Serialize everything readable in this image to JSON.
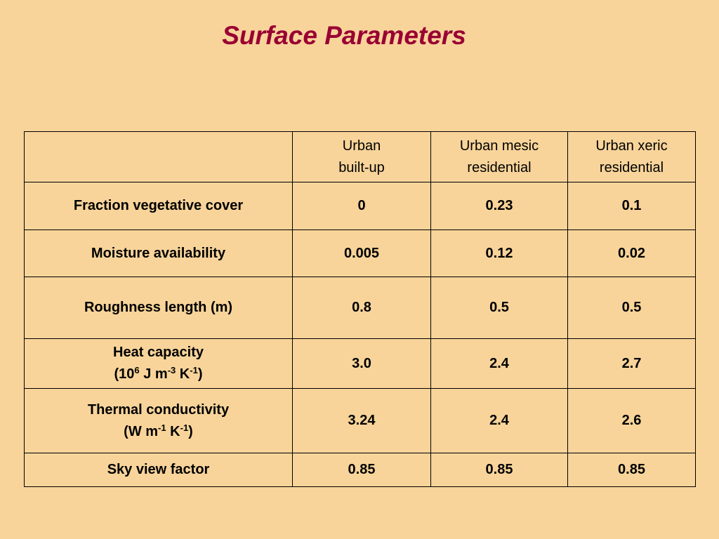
{
  "title": "Surface Parameters",
  "table": {
    "header": [
      [
        "Urban",
        "built-up"
      ],
      [
        "Urban mesic",
        "residential"
      ],
      [
        "Urban xeric",
        "residential"
      ]
    ],
    "rows": [
      {
        "label": [
          [
            "Fraction vegetative cover"
          ]
        ],
        "cells": [
          "0",
          "0.23",
          "0.1"
        ]
      },
      {
        "label": [
          [
            "Moisture availability"
          ]
        ],
        "cells": [
          "0.005",
          "0.12",
          "0.02"
        ]
      },
      {
        "label": [
          [
            "Roughness length (m)"
          ]
        ],
        "cells": [
          "0.8",
          "0.5",
          "0.5"
        ]
      },
      {
        "label": [
          [
            "Heat capacity"
          ],
          [
            "(10",
            {
              "sup": "6"
            },
            " J m",
            {
              "sup": "-3"
            },
            " K",
            {
              "sup": "-1"
            },
            ")"
          ]
        ],
        "cells": [
          "3.0",
          "2.4",
          "2.7"
        ]
      },
      {
        "label": [
          [
            "Thermal conductivity"
          ],
          [
            "(W m",
            {
              "sup": "-1"
            },
            " K",
            {
              "sup": "-1"
            },
            ")"
          ]
        ],
        "cells": [
          "3.24",
          "2.4",
          "2.6"
        ]
      },
      {
        "label": [
          [
            "Sky view factor"
          ]
        ],
        "cells": [
          "0.85",
          "0.85",
          "0.85"
        ]
      }
    ]
  }
}
